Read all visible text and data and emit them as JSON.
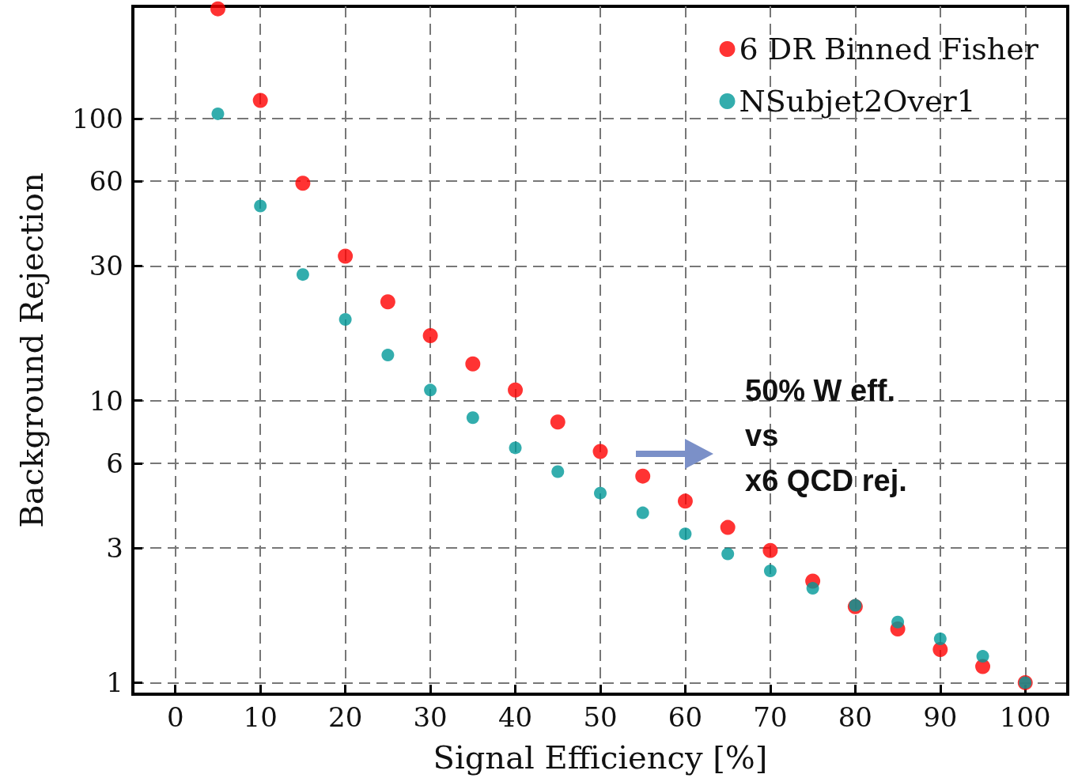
{
  "chart_data": {
    "type": "scatter",
    "xlabel": "Signal Efficiency [%]",
    "ylabel": "Background Rejection",
    "x": [
      5,
      10,
      15,
      20,
      25,
      30,
      35,
      40,
      45,
      50,
      55,
      60,
      65,
      70,
      75,
      80,
      85,
      90,
      95,
      100
    ],
    "series": [
      {
        "name": "6 DR Binned Fisher",
        "color": "#ff0000",
        "values": [
          245,
          116,
          59,
          32.5,
          22.4,
          17,
          13.5,
          10.9,
          8.4,
          6.6,
          5.4,
          4.4,
          3.55,
          2.94,
          2.29,
          1.86,
          1.55,
          1.31,
          1.14,
          1
        ]
      },
      {
        "name": "NSubjet2Over1",
        "color": "#009999",
        "values": [
          104,
          49,
          28,
          19.4,
          14.5,
          10.9,
          8.7,
          6.8,
          5.6,
          4.7,
          4,
          3.37,
          2.86,
          2.49,
          2.16,
          1.88,
          1.64,
          1.43,
          1.24,
          1
        ]
      }
    ],
    "xlim": [
      -5,
      105
    ],
    "xticks": [
      0,
      10,
      20,
      30,
      40,
      50,
      60,
      70,
      80,
      90,
      100
    ],
    "ylim": [
      0.91,
      250
    ],
    "yticks": [
      1,
      3,
      6,
      10,
      30,
      60,
      100
    ],
    "log": "y",
    "grid": true,
    "legend": "top right",
    "marker": "circle",
    "annotations": [
      "50% W eff.\nvs\nx6 QCD rej."
    ]
  }
}
